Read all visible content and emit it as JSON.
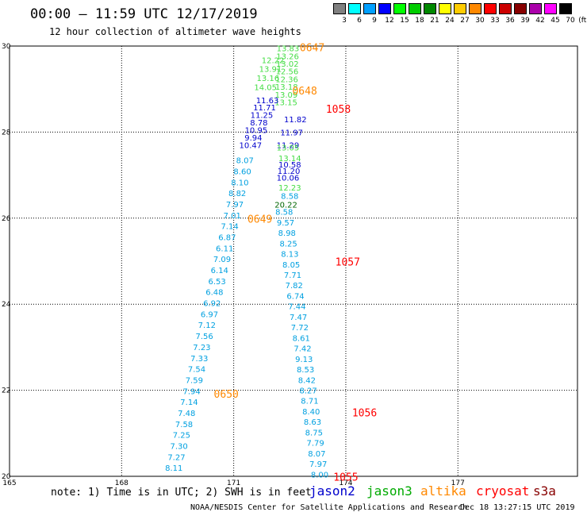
{
  "title": "00:00 – 11:59 UTC 12/17/2019",
  "subtitle": "12 hour collection of altimeter wave heights",
  "legend": {
    "unit": "(ft)",
    "bins": [
      {
        "label": "3",
        "color": "#808080"
      },
      {
        "label": "6",
        "color": "#00ffff"
      },
      {
        "label": "9",
        "color": "#00a0ff"
      },
      {
        "label": "12",
        "color": "#0000ff"
      },
      {
        "label": "15",
        "color": "#00ff00"
      },
      {
        "label": "18",
        "color": "#00cc00"
      },
      {
        "label": "21",
        "color": "#008800"
      },
      {
        "label": "24",
        "color": "#ffff00"
      },
      {
        "label": "27",
        "color": "#ffcc00"
      },
      {
        "label": "30",
        "color": "#ff8800"
      },
      {
        "label": "33",
        "color": "#ff0000"
      },
      {
        "label": "36",
        "color": "#cc0000"
      },
      {
        "label": "39",
        "color": "#880000"
      },
      {
        "label": "42",
        "color": "#aa00aa"
      },
      {
        "label": "45",
        "color": "#ff00ff"
      },
      {
        "label": "70",
        "color": "#000000"
      }
    ]
  },
  "axes": {
    "lon_ticks": [
      "165",
      "168",
      "171",
      "174",
      "177"
    ],
    "lat_ticks": [
      "30",
      "28",
      "26",
      "24",
      "22",
      "20"
    ]
  },
  "colors": {
    "jason2": "#0000cc",
    "jason3": "#00aa00",
    "altika": "#ff8800",
    "cryosat": "#ff0000",
    "s3a": "#880000",
    "swh_cyan": "#00a0e0",
    "swh_blue": "#0000cc",
    "swh_green": "#44dd44",
    "swh_dkgreen": "#006600"
  },
  "pass_labels": [
    {
      "text": "0647",
      "lon": 173.1,
      "lat": 29.95,
      "color": "#ff8800"
    },
    {
      "text": "0648",
      "lon": 172.9,
      "lat": 28.95,
      "color": "#ff8800"
    },
    {
      "text": "1058",
      "lon": 173.8,
      "lat": 28.52,
      "color": "#ff0000"
    },
    {
      "text": "0649",
      "lon": 171.7,
      "lat": 25.97,
      "color": "#ff8800"
    },
    {
      "text": "1057",
      "lon": 174.05,
      "lat": 24.97,
      "color": "#ff0000"
    },
    {
      "text": "0650",
      "lon": 170.8,
      "lat": 21.9,
      "color": "#ff8800"
    },
    {
      "text": "1056",
      "lon": 174.5,
      "lat": 21.47,
      "color": "#ff0000"
    },
    {
      "text": "1055",
      "lon": 174.0,
      "lat": 19.97,
      "color": "#ff0000"
    }
  ],
  "tracks": [
    {
      "name": "altika-north",
      "color": "#44dd44",
      "lat_start": 29.95,
      "lat_end": 28.7,
      "lon_start": 172.45,
      "lon_end": 172.4,
      "values": [
        "13.83",
        "13.26",
        "13.02",
        "12.56",
        "12.36",
        "13.18",
        "13.09",
        "13.15"
      ]
    },
    {
      "name": "altika-west",
      "color": "#44dd44",
      "lat_start": 29.68,
      "lat_end": 29.05,
      "lon_start": 172.05,
      "lon_end": 171.85,
      "values": [
        "12.22",
        "13.91",
        "13.16",
        "14.05"
      ]
    },
    {
      "name": "jason-a",
      "color": "#0000cc",
      "lat_start": 28.75,
      "lat_end": 27.7,
      "lon_start": 171.9,
      "lon_end": 171.45,
      "values": [
        "11.63",
        "11.71",
        "11.25",
        "8.78",
        "10.95",
        "9.94",
        "10.47"
      ]
    },
    {
      "name": "jason-b",
      "color": "#0000cc",
      "lat_start": 28.3,
      "lat_end": 27.7,
      "lon_start": 172.65,
      "lon_end": 172.45,
      "values": [
        "11.82",
        "11.97",
        "11.29"
      ]
    },
    {
      "name": "jason3-a",
      "color": "#44dd44",
      "lat_start": 27.65,
      "lat_end": 27.4,
      "lon_start": 172.45,
      "lon_end": 172.5,
      "values": [
        "13.05",
        "13.14"
      ]
    },
    {
      "name": "jason-c",
      "color": "#0000cc",
      "lat_start": 27.25,
      "lat_end": 26.95,
      "lon_start": 172.5,
      "lon_end": 172.45,
      "values": [
        "10.58",
        "11.20",
        "10.06"
      ]
    },
    {
      "name": "jason3-b",
      "color": "#44dd44",
      "lat_start": 26.72,
      "lat_end": 26.72,
      "lon_start": 172.5,
      "lon_end": 172.5,
      "values": [
        "12.23"
      ]
    },
    {
      "name": "east-upper",
      "color": "#00a0e0",
      "lat_start": 26.52,
      "lat_end": 26.52,
      "lon_start": 172.5,
      "lon_end": 172.5,
      "values": [
        "8.58"
      ]
    },
    {
      "name": "east-dark",
      "color": "#006600",
      "lat_start": 26.32,
      "lat_end": 26.32,
      "lon_start": 172.4,
      "lon_end": 172.4,
      "values": [
        "20.22"
      ]
    },
    {
      "name": "west-ascending",
      "color": "#00a0e0",
      "lat_start": 27.35,
      "lat_end": 20.2,
      "lon_start": 171.3,
      "lon_end": 169.4,
      "values": [
        "8.07",
        "8.60",
        "8.10",
        "8.82",
        "7.97",
        "7.01",
        "7.14",
        "6.87",
        "6.11",
        "7.09",
        "6.14",
        "6.53",
        "6.48",
        "6.92",
        "6.97",
        "7.12",
        "7.56",
        "7.23",
        "7.33",
        "7.54",
        "7.59",
        "7.94",
        "7.14",
        "7.48",
        "7.58",
        "7.25",
        "7.30",
        "7.27",
        "8.11"
      ]
    },
    {
      "name": "east-descending",
      "color": "#00a0e0",
      "lat_start": 26.15,
      "lat_end": 20.05,
      "lon_start": 172.35,
      "lon_end": 173.3,
      "values": [
        "8.58",
        "9.57",
        "8.98",
        "8.25",
        "8.13",
        "8.05",
        "7.71",
        "7.82",
        "6.74",
        "7.44",
        "7.47",
        "7.72",
        "8.61",
        "7.42",
        "9.13",
        "8.53",
        "8.42",
        "8.27",
        "8.71",
        "8.40",
        "8.63",
        "8.75",
        "7.79",
        "8.07",
        "7.97",
        "8.00"
      ]
    }
  ],
  "footer": {
    "note": "note: 1) Time is in UTC; 2) SWH is in feet",
    "jason2": "jason2",
    "jason3": "jason3",
    "altika": "altika",
    "cryosat": "cryosat",
    "s3a": "s3a",
    "credit": "NOAA/NESDIS Center for Satellite Applications and Research",
    "stamp": "Dec 18 13:27:15 UTC 2019"
  }
}
